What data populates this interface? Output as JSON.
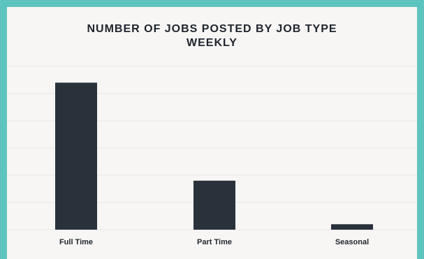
{
  "chart_data": {
    "type": "bar",
    "title": "NUMBER OF JOBS POSTED BY JOB TYPE",
    "subtitle": "WEEKLY",
    "categories": [
      "Full Time",
      "Part Time",
      "Seasonal"
    ],
    "values": [
      54,
      18,
      2
    ],
    "ylim": [
      0,
      60
    ],
    "grid": true,
    "bar_color": "#29313b",
    "grid_color": "#e6e5e2"
  }
}
